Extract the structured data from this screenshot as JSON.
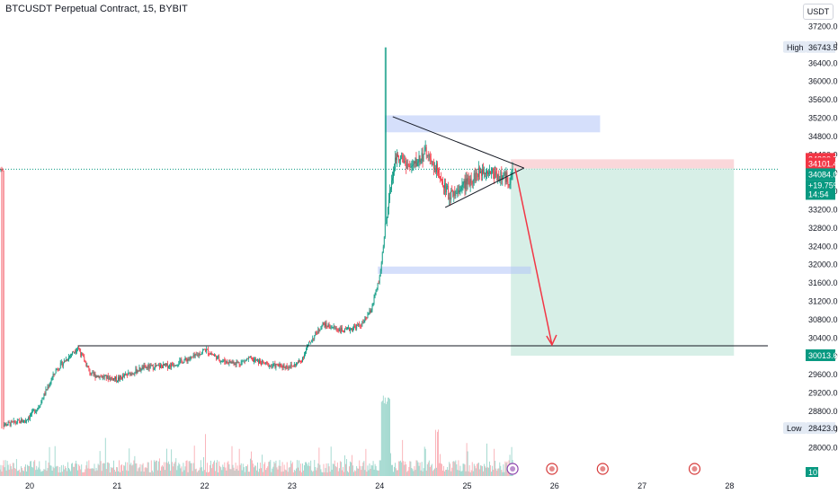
{
  "header": {
    "title": "BTCUSDT Perpetual Contract, 15, BYBIT",
    "currency": "USDT"
  },
  "chart_data": {
    "type": "candlestick",
    "symbol": "BTCUSDT Perpetual Contract",
    "interval": "15",
    "exchange": "BYBIT",
    "y_ticks": [
      37200.0,
      36800.0,
      36400.0,
      36000.0,
      35600.0,
      35200.0,
      34800.0,
      34400.0,
      34000.0,
      33600.0,
      33200.0,
      32800.0,
      32400.0,
      32000.0,
      31600.0,
      31200.0,
      30800.0,
      30400.0,
      30000.0,
      29600.0,
      29200.0,
      28800.0,
      28400.0,
      28000.0
    ],
    "x_ticks": [
      "20",
      "21",
      "22",
      "23",
      "24",
      "25",
      "26",
      "27",
      "28"
    ],
    "ylim": [
      27800,
      37450
    ],
    "price_tags": [
      {
        "label": "High",
        "value": "36743.5",
        "price": 36743.5,
        "color": "#e3eaf4",
        "text_color": "#131722"
      },
      {
        "label": "",
        "value": "34300.7",
        "price": 34300.7,
        "color": "#f23645",
        "text_color": "#ffffff"
      },
      {
        "label": "",
        "value": "34101.4",
        "price": 34101.4,
        "color": "#f23645",
        "text_color": "#ffffff"
      },
      {
        "label": "",
        "value": "34084.0",
        "price": 34084.0,
        "color": "#089981",
        "text_color": "#ffffff"
      },
      {
        "label": "",
        "value": "30013.6",
        "price": 30013.6,
        "color": "#089981",
        "text_color": "#ffffff"
      },
      {
        "label": "Low",
        "value": "28423.0",
        "price": 28423.0,
        "color": "#e3eaf4",
        "text_color": "#131722"
      }
    ],
    "last_price_change": "+19.75%",
    "countdown": "14:54",
    "volume_badge": "10",
    "annotations": {
      "support_line_price": 30230,
      "supply_zone": [
        34890,
        35260
      ],
      "demand_zone": [
        31800,
        31960
      ],
      "triangle_upper": [
        [
          24.15,
          35230
        ],
        [
          25.65,
          34110
        ]
      ],
      "triangle_lower": [
        [
          24.75,
          33250
        ],
        [
          25.65,
          34110
        ]
      ],
      "short_position": {
        "entry": 34101.4,
        "stop": 34300.7,
        "target": 30013.6,
        "from": 25.5,
        "to": 28.05
      },
      "arrow": {
        "from": [
          25.55,
          34100
        ],
        "to": [
          25.97,
          30250
        ]
      }
    },
    "colors": {
      "up": "#089981",
      "down": "#f23645",
      "zone_blue": "#b2c5f7",
      "tp": "#c9e9df",
      "sl": "#f9cdd1"
    }
  }
}
